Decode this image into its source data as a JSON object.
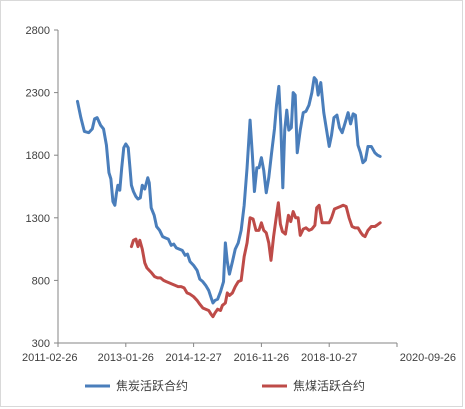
{
  "chart_data": {
    "type": "line",
    "title": "",
    "xlabel": "",
    "ylabel": "",
    "ylim": [
      300,
      2800
    ],
    "yticks": [
      300,
      800,
      1300,
      1800,
      2300,
      2800
    ],
    "xlim": [
      "2011-02-26",
      "2020-09-26"
    ],
    "xticks": [
      "2011-02-26",
      "2013-01-26",
      "2014-12-27",
      "2016-11-26",
      "2018-10-27",
      "2020-09-26"
    ],
    "grid": false,
    "legend_position": "bottom",
    "series": [
      {
        "name": "焦炭活跃合约",
        "color": "#4a7ebb",
        "points": [
          [
            "2011-09-15",
            2230
          ],
          [
            "2011-10-20",
            2100
          ],
          [
            "2011-11-25",
            1990
          ],
          [
            "2012-01-10",
            1980
          ],
          [
            "2012-02-15",
            2010
          ],
          [
            "2012-03-10",
            2090
          ],
          [
            "2012-04-05",
            2100
          ],
          [
            "2012-05-10",
            2040
          ],
          [
            "2012-06-10",
            2010
          ],
          [
            "2012-07-10",
            1880
          ],
          [
            "2012-08-05",
            1660
          ],
          [
            "2012-08-25",
            1610
          ],
          [
            "2012-09-15",
            1430
          ],
          [
            "2012-10-05",
            1400
          ],
          [
            "2012-10-20",
            1490
          ],
          [
            "2012-11-05",
            1560
          ],
          [
            "2012-11-25",
            1520
          ],
          [
            "2012-12-15",
            1700
          ],
          [
            "2013-01-05",
            1860
          ],
          [
            "2013-01-26",
            1890
          ],
          [
            "2013-02-20",
            1860
          ],
          [
            "2013-03-10",
            1700
          ],
          [
            "2013-03-25",
            1560
          ],
          [
            "2013-04-15",
            1510
          ],
          [
            "2013-05-10",
            1470
          ],
          [
            "2013-06-01",
            1450
          ],
          [
            "2013-06-25",
            1460
          ],
          [
            "2013-07-15",
            1560
          ],
          [
            "2013-08-10",
            1530
          ],
          [
            "2013-09-10",
            1620
          ],
          [
            "2013-09-25",
            1580
          ],
          [
            "2013-10-15",
            1380
          ],
          [
            "2013-11-15",
            1320
          ],
          [
            "2013-12-10",
            1230
          ],
          [
            "2014-01-10",
            1200
          ],
          [
            "2014-02-10",
            1150
          ],
          [
            "2014-03-10",
            1140
          ],
          [
            "2014-04-10",
            1130
          ],
          [
            "2014-05-10",
            1080
          ],
          [
            "2014-06-05",
            1090
          ],
          [
            "2014-07-01",
            1060
          ],
          [
            "2014-08-01",
            1050
          ],
          [
            "2014-09-01",
            1040
          ],
          [
            "2014-10-01",
            1000
          ],
          [
            "2014-10-25",
            1010
          ],
          [
            "2014-11-20",
            950
          ],
          [
            "2014-12-27",
            920
          ],
          [
            "2015-02-01",
            880
          ],
          [
            "2015-03-01",
            810
          ],
          [
            "2015-04-01",
            790
          ],
          [
            "2015-05-01",
            760
          ],
          [
            "2015-06-01",
            720
          ],
          [
            "2015-07-01",
            650
          ],
          [
            "2015-07-15",
            620
          ],
          [
            "2015-08-05",
            640
          ],
          [
            "2015-09-01",
            650
          ],
          [
            "2015-10-01",
            710
          ],
          [
            "2015-11-01",
            790
          ],
          [
            "2015-11-20",
            1100
          ],
          [
            "2015-12-10",
            950
          ],
          [
            "2016-01-01",
            850
          ],
          [
            "2016-02-01",
            950
          ],
          [
            "2016-03-01",
            1050
          ],
          [
            "2016-04-01",
            1100
          ],
          [
            "2016-05-01",
            1200
          ],
          [
            "2016-06-01",
            1400
          ],
          [
            "2016-07-01",
            1700
          ],
          [
            "2016-08-01",
            2080
          ],
          [
            "2016-08-25",
            1800
          ],
          [
            "2016-09-15",
            1510
          ],
          [
            "2016-10-10",
            1700
          ],
          [
            "2016-11-01",
            1700
          ],
          [
            "2016-11-26",
            1780
          ],
          [
            "2016-12-20",
            1680
          ],
          [
            "2017-01-15",
            1500
          ],
          [
            "2017-02-10",
            1620
          ],
          [
            "2017-03-10",
            1810
          ],
          [
            "2017-04-10",
            2010
          ],
          [
            "2017-05-01",
            2200
          ],
          [
            "2017-05-25",
            2350
          ],
          [
            "2017-06-15",
            2030
          ],
          [
            "2017-07-05",
            1540
          ],
          [
            "2017-07-25",
            2000
          ],
          [
            "2017-08-15",
            2160
          ],
          [
            "2017-09-05",
            2000
          ],
          [
            "2017-10-01",
            2020
          ],
          [
            "2017-10-20",
            2300
          ],
          [
            "2017-11-10",
            2280
          ],
          [
            "2017-12-01",
            1820
          ],
          [
            "2018-01-01",
            2000
          ],
          [
            "2018-02-01",
            2140
          ],
          [
            "2018-03-01",
            2150
          ],
          [
            "2018-04-01",
            2200
          ],
          [
            "2018-05-01",
            2300
          ],
          [
            "2018-05-25",
            2420
          ],
          [
            "2018-06-15",
            2400
          ],
          [
            "2018-07-05",
            2280
          ],
          [
            "2018-08-01",
            2380
          ],
          [
            "2018-09-01",
            2140
          ],
          [
            "2018-10-27",
            1870
          ],
          [
            "2018-11-20",
            1960
          ],
          [
            "2018-12-15",
            2100
          ],
          [
            "2019-01-15",
            2120
          ],
          [
            "2019-02-10",
            2020
          ],
          [
            "2019-03-10",
            1980
          ],
          [
            "2019-04-10",
            2060
          ],
          [
            "2019-05-10",
            2140
          ],
          [
            "2019-06-05",
            2050
          ],
          [
            "2019-07-01",
            2130
          ],
          [
            "2019-07-25",
            2120
          ],
          [
            "2019-08-20",
            1880
          ],
          [
            "2019-09-15",
            1820
          ],
          [
            "2019-10-10",
            1740
          ],
          [
            "2019-11-05",
            1760
          ],
          [
            "2019-12-01",
            1870
          ],
          [
            "2020-01-05",
            1870
          ],
          [
            "2020-02-10",
            1820
          ],
          [
            "2020-03-10",
            1800
          ],
          [
            "2020-04-05",
            1790
          ]
        ]
      },
      {
        "name": "焦煤活跃合约",
        "color": "#be4b48",
        "points": [
          [
            "2013-03-25",
            1070
          ],
          [
            "2013-04-15",
            1120
          ],
          [
            "2013-05-10",
            1130
          ],
          [
            "2013-06-01",
            1070
          ],
          [
            "2013-06-20",
            1120
          ],
          [
            "2013-07-15",
            1050
          ],
          [
            "2013-08-10",
            940
          ],
          [
            "2013-09-01",
            900
          ],
          [
            "2013-09-25",
            880
          ],
          [
            "2013-10-20",
            860
          ],
          [
            "2013-11-20",
            830
          ],
          [
            "2013-12-20",
            820
          ],
          [
            "2014-01-20",
            820
          ],
          [
            "2014-02-20",
            800
          ],
          [
            "2014-03-20",
            790
          ],
          [
            "2014-04-20",
            780
          ],
          [
            "2014-05-20",
            770
          ],
          [
            "2014-06-20",
            760
          ],
          [
            "2014-07-20",
            750
          ],
          [
            "2014-08-20",
            750
          ],
          [
            "2014-09-20",
            740
          ],
          [
            "2014-10-20",
            700
          ],
          [
            "2014-11-20",
            690
          ],
          [
            "2014-12-27",
            670
          ],
          [
            "2015-02-01",
            640
          ],
          [
            "2015-03-01",
            610
          ],
          [
            "2015-04-01",
            580
          ],
          [
            "2015-05-01",
            570
          ],
          [
            "2015-06-01",
            560
          ],
          [
            "2015-06-25",
            530
          ],
          [
            "2015-07-15",
            510
          ],
          [
            "2015-08-05",
            540
          ],
          [
            "2015-09-01",
            570
          ],
          [
            "2015-10-01",
            560
          ],
          [
            "2015-10-20",
            600
          ],
          [
            "2015-11-20",
            620
          ],
          [
            "2015-12-10",
            700
          ],
          [
            "2016-01-01",
            680
          ],
          [
            "2016-02-01",
            700
          ],
          [
            "2016-03-01",
            750
          ],
          [
            "2016-04-01",
            790
          ],
          [
            "2016-05-01",
            800
          ],
          [
            "2016-06-01",
            990
          ],
          [
            "2016-07-01",
            1100
          ],
          [
            "2016-08-01",
            1300
          ],
          [
            "2016-09-01",
            1290
          ],
          [
            "2016-10-01",
            1200
          ],
          [
            "2016-11-01",
            1200
          ],
          [
            "2016-11-26",
            1260
          ],
          [
            "2016-12-20",
            1200
          ],
          [
            "2017-01-15",
            1180
          ],
          [
            "2017-02-10",
            1100
          ],
          [
            "2017-03-05",
            960
          ],
          [
            "2017-04-01",
            1150
          ],
          [
            "2017-05-01",
            1320
          ],
          [
            "2017-05-20",
            1420
          ],
          [
            "2017-06-10",
            1250
          ],
          [
            "2017-07-01",
            1190
          ],
          [
            "2017-08-01",
            1170
          ],
          [
            "2017-09-01",
            1320
          ],
          [
            "2017-09-25",
            1270
          ],
          [
            "2017-10-20",
            1350
          ],
          [
            "2017-11-15",
            1300
          ],
          [
            "2017-12-10",
            1300
          ],
          [
            "2018-01-01",
            1160
          ],
          [
            "2018-02-01",
            1210
          ],
          [
            "2018-03-01",
            1220
          ],
          [
            "2018-04-01",
            1200
          ],
          [
            "2018-05-01",
            1210
          ],
          [
            "2018-06-01",
            1240
          ],
          [
            "2018-06-20",
            1380
          ],
          [
            "2018-07-15",
            1400
          ],
          [
            "2018-08-15",
            1260
          ],
          [
            "2018-09-15",
            1260
          ],
          [
            "2018-10-27",
            1260
          ],
          [
            "2018-11-20",
            1300
          ],
          [
            "2018-12-20",
            1370
          ],
          [
            "2019-01-20",
            1380
          ],
          [
            "2019-02-20",
            1390
          ],
          [
            "2019-03-20",
            1400
          ],
          [
            "2019-04-20",
            1390
          ],
          [
            "2019-05-20",
            1300
          ],
          [
            "2019-06-20",
            1230
          ],
          [
            "2019-07-20",
            1220
          ],
          [
            "2019-08-20",
            1220
          ],
          [
            "2019-09-20",
            1180
          ],
          [
            "2019-10-10",
            1160
          ],
          [
            "2019-11-01",
            1150
          ],
          [
            "2019-12-01",
            1200
          ],
          [
            "2020-01-05",
            1230
          ],
          [
            "2020-02-10",
            1230
          ],
          [
            "2020-03-01",
            1240
          ],
          [
            "2020-04-05",
            1260
          ]
        ]
      }
    ]
  }
}
